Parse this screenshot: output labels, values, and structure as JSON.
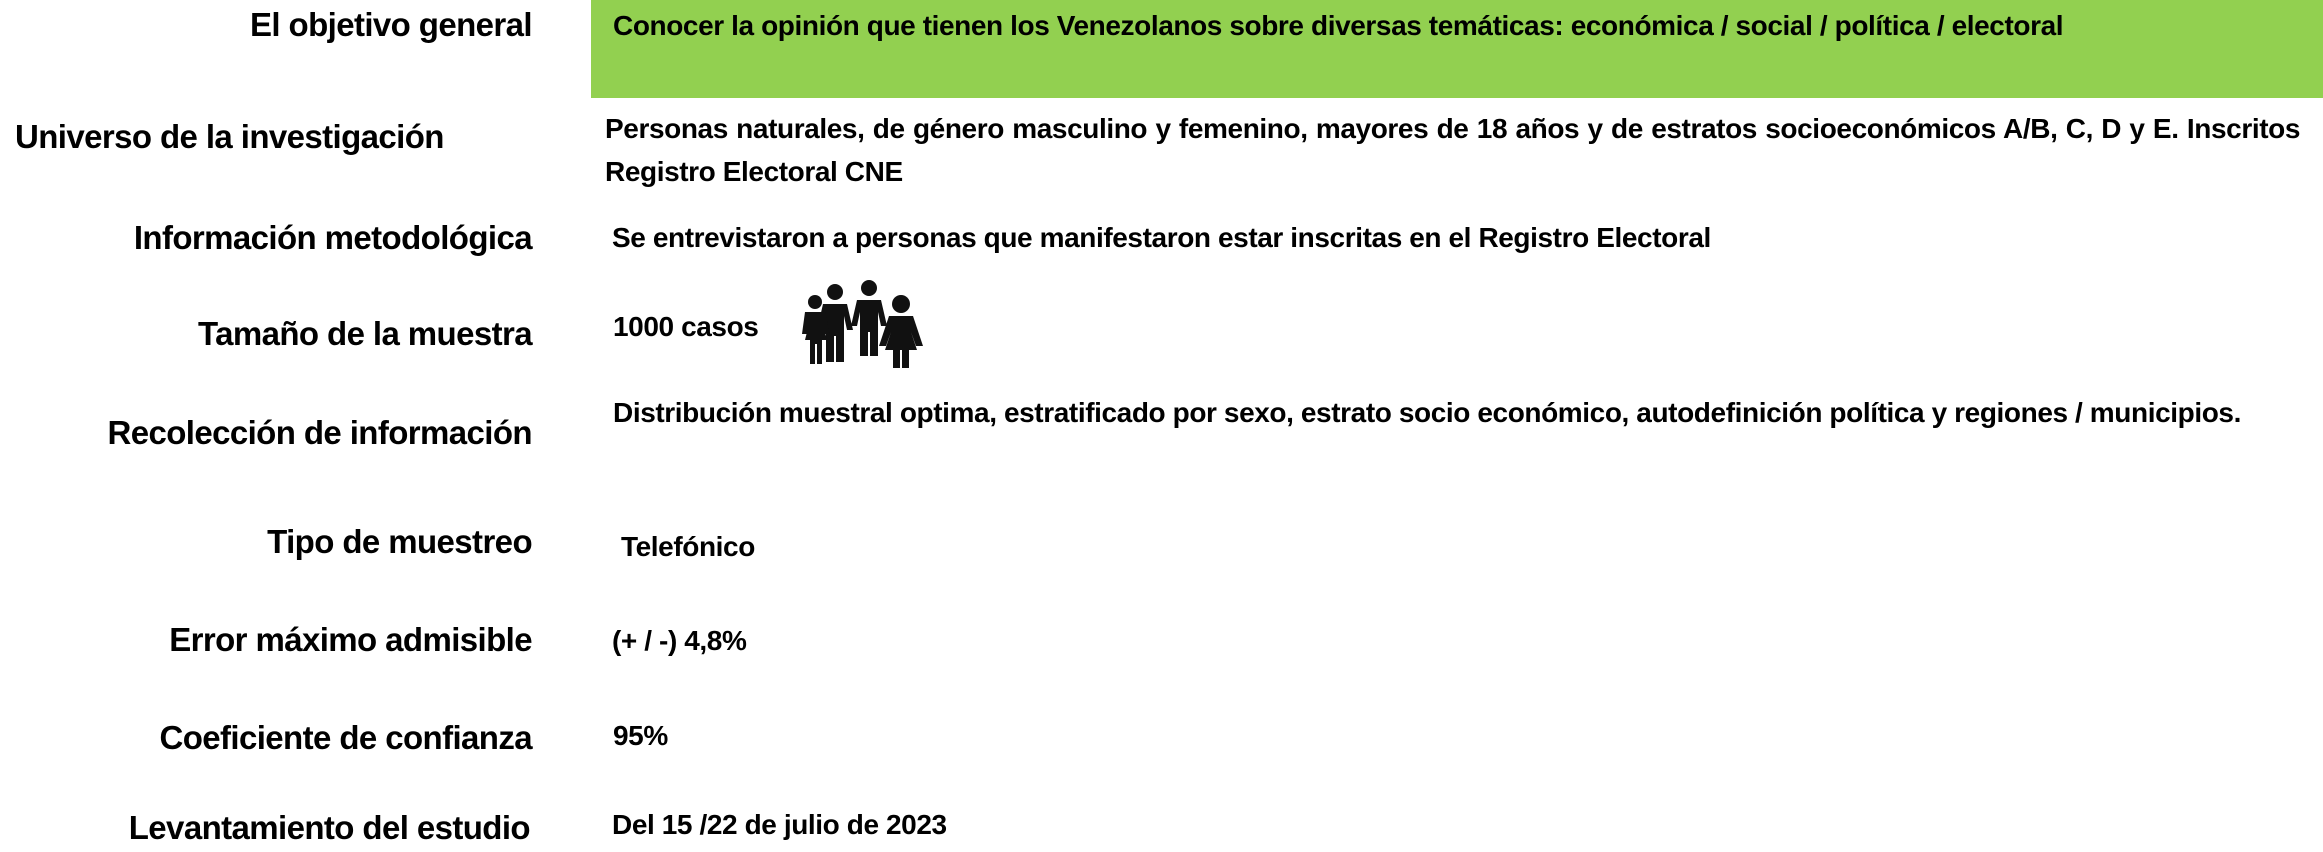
{
  "rows": [
    {
      "label": "El objetivo general",
      "value": "Conocer la opinión que tienen los Venezolanos sobre diversas temáticas: económica / social / política / electoral"
    },
    {
      "label": "Universo de la investigación",
      "value": "Personas naturales, de género masculino y femenino, mayores de 18 años y de estratos socioeconómicos A/B, C, D y E. Inscritos Registro Electoral CNE"
    },
    {
      "label": "Información metodológica",
      "value": "Se  entrevistaron a personas que manifestaron estar inscritas en el Registro Electoral"
    },
    {
      "label": "Tamaño de la muestra",
      "value": "1000 casos"
    },
    {
      "label": "Recolección de información",
      "value": "Distribución muestral optima, estratificado por sexo, estrato socio económico, autodefinición política y regiones / municipios."
    },
    {
      "label": "Tipo de muestreo",
      "value": "Telefónico"
    },
    {
      "label": "Error máximo admisible",
      "value": "(+ / -) 4,8%"
    },
    {
      "label": "Coeficiente de confianza",
      "value": "95%"
    },
    {
      "label": "Levantamiento del estudio",
      "value": "Del 15 /22  de julio de 2023"
    }
  ]
}
